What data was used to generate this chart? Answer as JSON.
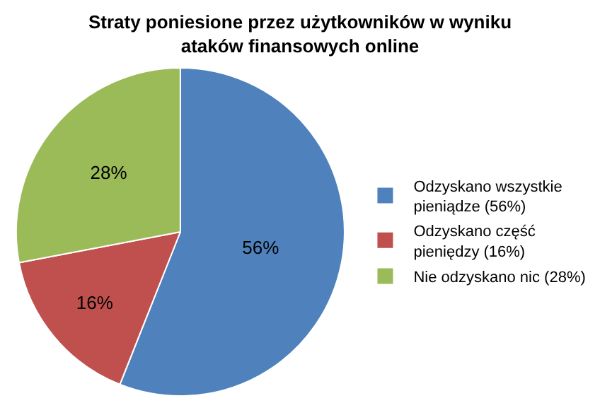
{
  "chart_data": {
    "type": "pie",
    "title": "Straty poniesione przez użytkowników w wyniku ataków finansowych online",
    "categories": [
      "Odzyskano wszystkie pieniądze (56%)",
      "Odzyskano część pieniędzy (16%)",
      "Nie odzyskano nic (28%)"
    ],
    "values": [
      56,
      16,
      28
    ],
    "colors": [
      "#4f81bd",
      "#c0504d",
      "#9bbb59"
    ],
    "value_labels": [
      "56%",
      "16%",
      "28%"
    ],
    "legend": "right"
  }
}
